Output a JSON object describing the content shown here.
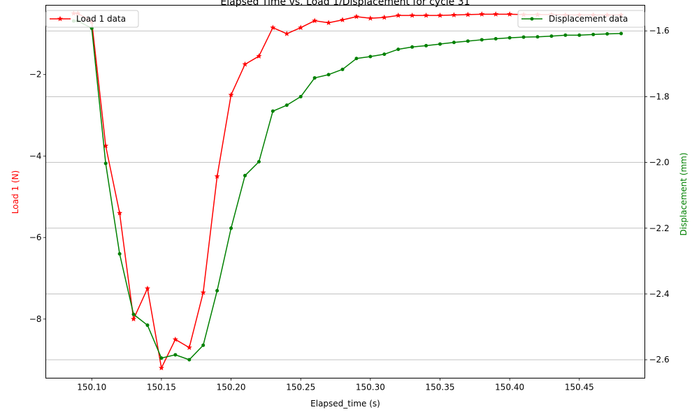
{
  "chart_data": {
    "type": "line",
    "title": "Elapsed Time vs. Load 1/Displacement for cycle 31",
    "xlabel": "Elapsed_time (s)",
    "ylabel_left": "Load 1 (N)",
    "ylabel_right": "Displacement (mm)",
    "xlim": [
      150.067,
      150.497
    ],
    "ylim_left": [
      -9.45,
      -0.3
    ],
    "ylim_right": [
      -2.656,
      -1.522
    ],
    "x_ticks": [
      150.1,
      150.15,
      150.2,
      150.25,
      150.3,
      150.35,
      150.4,
      150.45
    ],
    "x_tick_labels": [
      "150.10",
      "150.15",
      "150.20",
      "150.25",
      "150.30",
      "150.35",
      "150.40",
      "150.45"
    ],
    "y_left_ticks": [
      -8,
      -6,
      -4,
      -2
    ],
    "y_left_tick_labels": [
      "−8",
      "−6",
      "−4",
      "−2"
    ],
    "y_right_ticks": [
      -2.6,
      -2.4,
      -2.2,
      -2.0,
      -1.8,
      -1.6
    ],
    "y_right_tick_labels": [
      "−2.6",
      "−2.4",
      "−2.2",
      "−2.0",
      "−1.8",
      "−1.6"
    ],
    "grid": "horizontal lines at right-axis ticks",
    "series": [
      {
        "name": "Load 1 data",
        "axis": "left",
        "color": "#ff0000",
        "marker": "star",
        "legend_position": "upper-left",
        "x": [
          150.087,
          150.09,
          150.1,
          150.11,
          150.12,
          150.13,
          150.14,
          150.15,
          150.16,
          150.17,
          150.18,
          150.19,
          150.2,
          150.21,
          150.22,
          150.23,
          150.24,
          150.25,
          150.26,
          150.27,
          150.28,
          150.29,
          150.3,
          150.31,
          150.32,
          150.33,
          150.34,
          150.35,
          150.36,
          150.37,
          150.38,
          150.39,
          150.4,
          150.41,
          150.42,
          150.43,
          150.44,
          150.45,
          150.46,
          150.47,
          150.48
        ],
        "values": [
          -0.5,
          -0.5,
          -0.7,
          -3.75,
          -5.4,
          -8.0,
          -7.25,
          -9.2,
          -8.5,
          -8.7,
          -7.35,
          -4.5,
          -2.5,
          -1.75,
          -1.55,
          -0.85,
          -1.0,
          -0.85,
          -0.68,
          -0.73,
          -0.66,
          -0.58,
          -0.62,
          -0.6,
          -0.55,
          -0.55,
          -0.55,
          -0.55,
          -0.54,
          -0.53,
          -0.52,
          -0.52,
          -0.52,
          -0.53,
          -0.53,
          -0.53,
          -0.54,
          -0.54,
          -0.54,
          -0.54,
          -0.54
        ]
      },
      {
        "name": "Displacement data",
        "axis": "right",
        "color": "#008000",
        "marker": "dot",
        "legend_position": "upper-right",
        "x": [
          150.087,
          150.09,
          150.1,
          150.11,
          150.12,
          150.13,
          150.14,
          150.15,
          150.16,
          150.17,
          150.18,
          150.19,
          150.2,
          150.21,
          150.22,
          150.23,
          150.24,
          150.25,
          150.26,
          150.27,
          150.28,
          150.29,
          150.3,
          150.31,
          150.32,
          150.33,
          150.34,
          150.35,
          150.36,
          150.37,
          150.38,
          150.39,
          150.4,
          150.41,
          150.42,
          150.43,
          150.44,
          150.45,
          150.46,
          150.47,
          150.48
        ],
        "values": [
          -1.57,
          -1.57,
          -1.592,
          -2.003,
          -2.278,
          -2.462,
          -2.495,
          -2.595,
          -2.585,
          -2.6,
          -2.556,
          -2.39,
          -2.2,
          -2.04,
          -1.998,
          -1.844,
          -1.826,
          -1.8,
          -1.743,
          -1.733,
          -1.717,
          -1.684,
          -1.678,
          -1.671,
          -1.656,
          -1.649,
          -1.645,
          -1.64,
          -1.635,
          -1.631,
          -1.627,
          -1.624,
          -1.621,
          -1.619,
          -1.618,
          -1.616,
          -1.613,
          -1.613,
          -1.611,
          -1.609,
          -1.608
        ]
      }
    ]
  }
}
